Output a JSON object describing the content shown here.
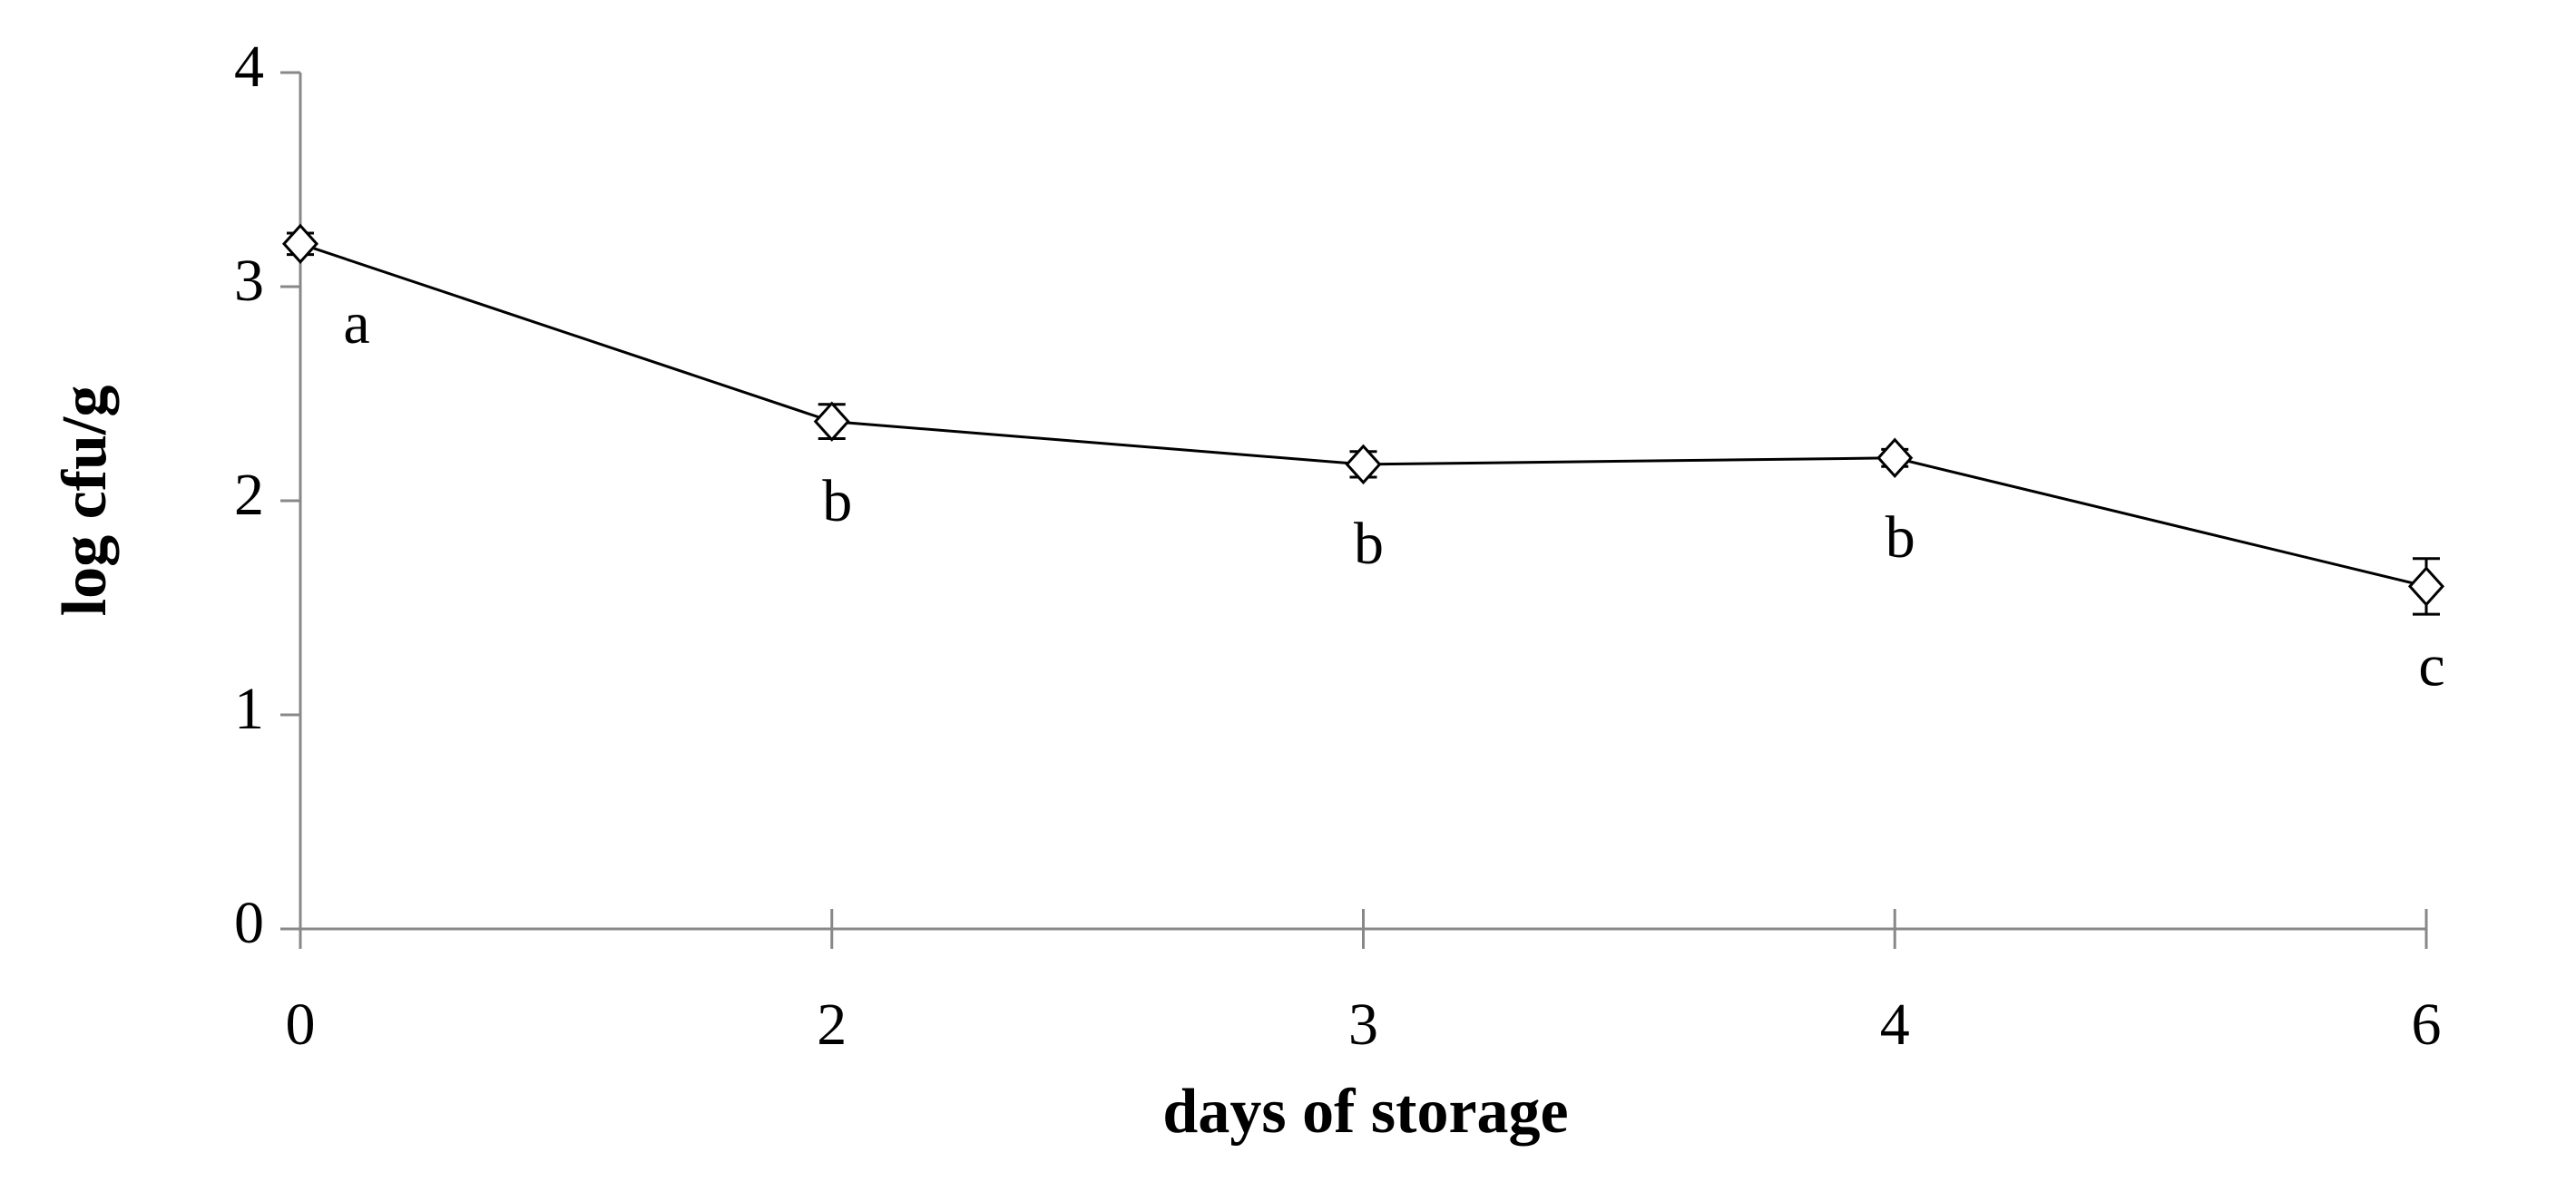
{
  "chart_data": {
    "type": "line",
    "xlabel": "days of storage",
    "ylabel": "log cfu/g",
    "categories": [
      "0",
      "2",
      "3",
      "4",
      "6"
    ],
    "values": [
      3.2,
      2.37,
      2.17,
      2.2,
      1.6
    ],
    "errors": [
      0.05,
      0.08,
      0.06,
      0.04,
      0.13
    ],
    "annotations": [
      "a",
      "b",
      "b",
      "b",
      "c"
    ],
    "color": "#000000",
    "ylim": [
      0,
      4
    ],
    "yticks": [
      0,
      1,
      2,
      3,
      4
    ]
  }
}
